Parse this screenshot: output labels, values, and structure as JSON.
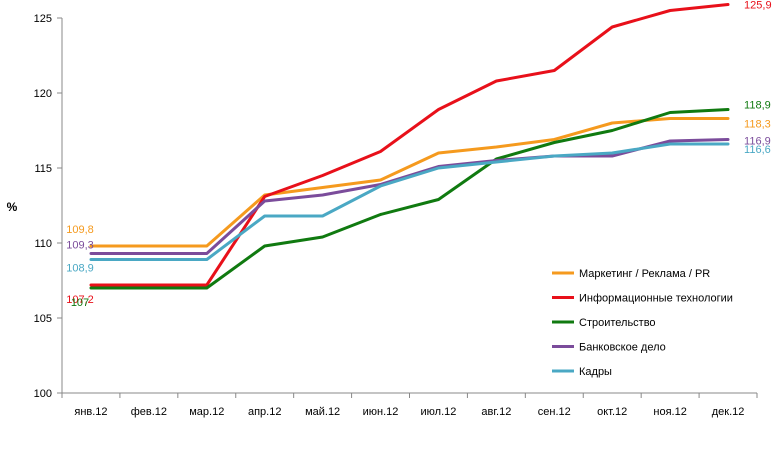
{
  "chart_data": {
    "type": "line",
    "title": "",
    "xlabel": "",
    "ylabel": "%",
    "ylim": [
      100,
      125
    ],
    "yticks": [
      "100",
      "105",
      "110",
      "115",
      "120",
      "125"
    ],
    "categories": [
      "янв.12",
      "фев.12",
      "мар.12",
      "апр.12",
      "май.12",
      "июн.12",
      "июл.12",
      "авг.12",
      "сен.12",
      "окт.12",
      "ноя.12",
      "дек.12"
    ],
    "grid": false,
    "legend_position": "right",
    "series": [
      {
        "name": "Маркетинг / Реклама / PR",
        "color": "#f59a1e",
        "values": [
          109.8,
          109.8,
          109.8,
          113.2,
          113.7,
          114.2,
          116.0,
          116.4,
          116.9,
          118.0,
          118.3,
          118.3
        ],
        "labels": [
          {
            "index": 0,
            "text": "109,8"
          },
          {
            "index": 11,
            "text": "118,3"
          }
        ]
      },
      {
        "name": "Информационные технологии",
        "color": "#e8101a",
        "values": [
          107.2,
          107.2,
          107.2,
          113.1,
          114.5,
          116.1,
          118.9,
          120.8,
          121.5,
          124.4,
          125.5,
          125.9
        ],
        "labels": [
          {
            "index": 0,
            "text": "107,2"
          },
          {
            "index": 11,
            "text": "125,9"
          }
        ]
      },
      {
        "name": "Строительство",
        "color": "#107a10",
        "values": [
          107.0,
          107.0,
          107.0,
          109.8,
          110.4,
          111.9,
          112.9,
          115.6,
          116.7,
          117.5,
          118.7,
          118.9
        ],
        "labels": [
          {
            "index": 0,
            "text": "107"
          },
          {
            "index": 11,
            "text": "118,9"
          }
        ]
      },
      {
        "name": "Банковское дело",
        "color": "#7b4c9b",
        "values": [
          109.3,
          109.3,
          109.3,
          112.8,
          113.2,
          113.9,
          115.1,
          115.5,
          115.8,
          115.8,
          116.8,
          116.9
        ],
        "labels": [
          {
            "index": 0,
            "text": "109,3"
          },
          {
            "index": 11,
            "text": "116,9"
          }
        ]
      },
      {
        "name": "Кадры",
        "color": "#4aa8c4",
        "values": [
          108.9,
          108.9,
          108.9,
          111.8,
          111.8,
          113.8,
          115.0,
          115.4,
          115.8,
          116.0,
          116.6,
          116.6
        ],
        "labels": [
          {
            "index": 0,
            "text": "108,9"
          },
          {
            "index": 11,
            "text": "116,6"
          }
        ]
      }
    ]
  }
}
